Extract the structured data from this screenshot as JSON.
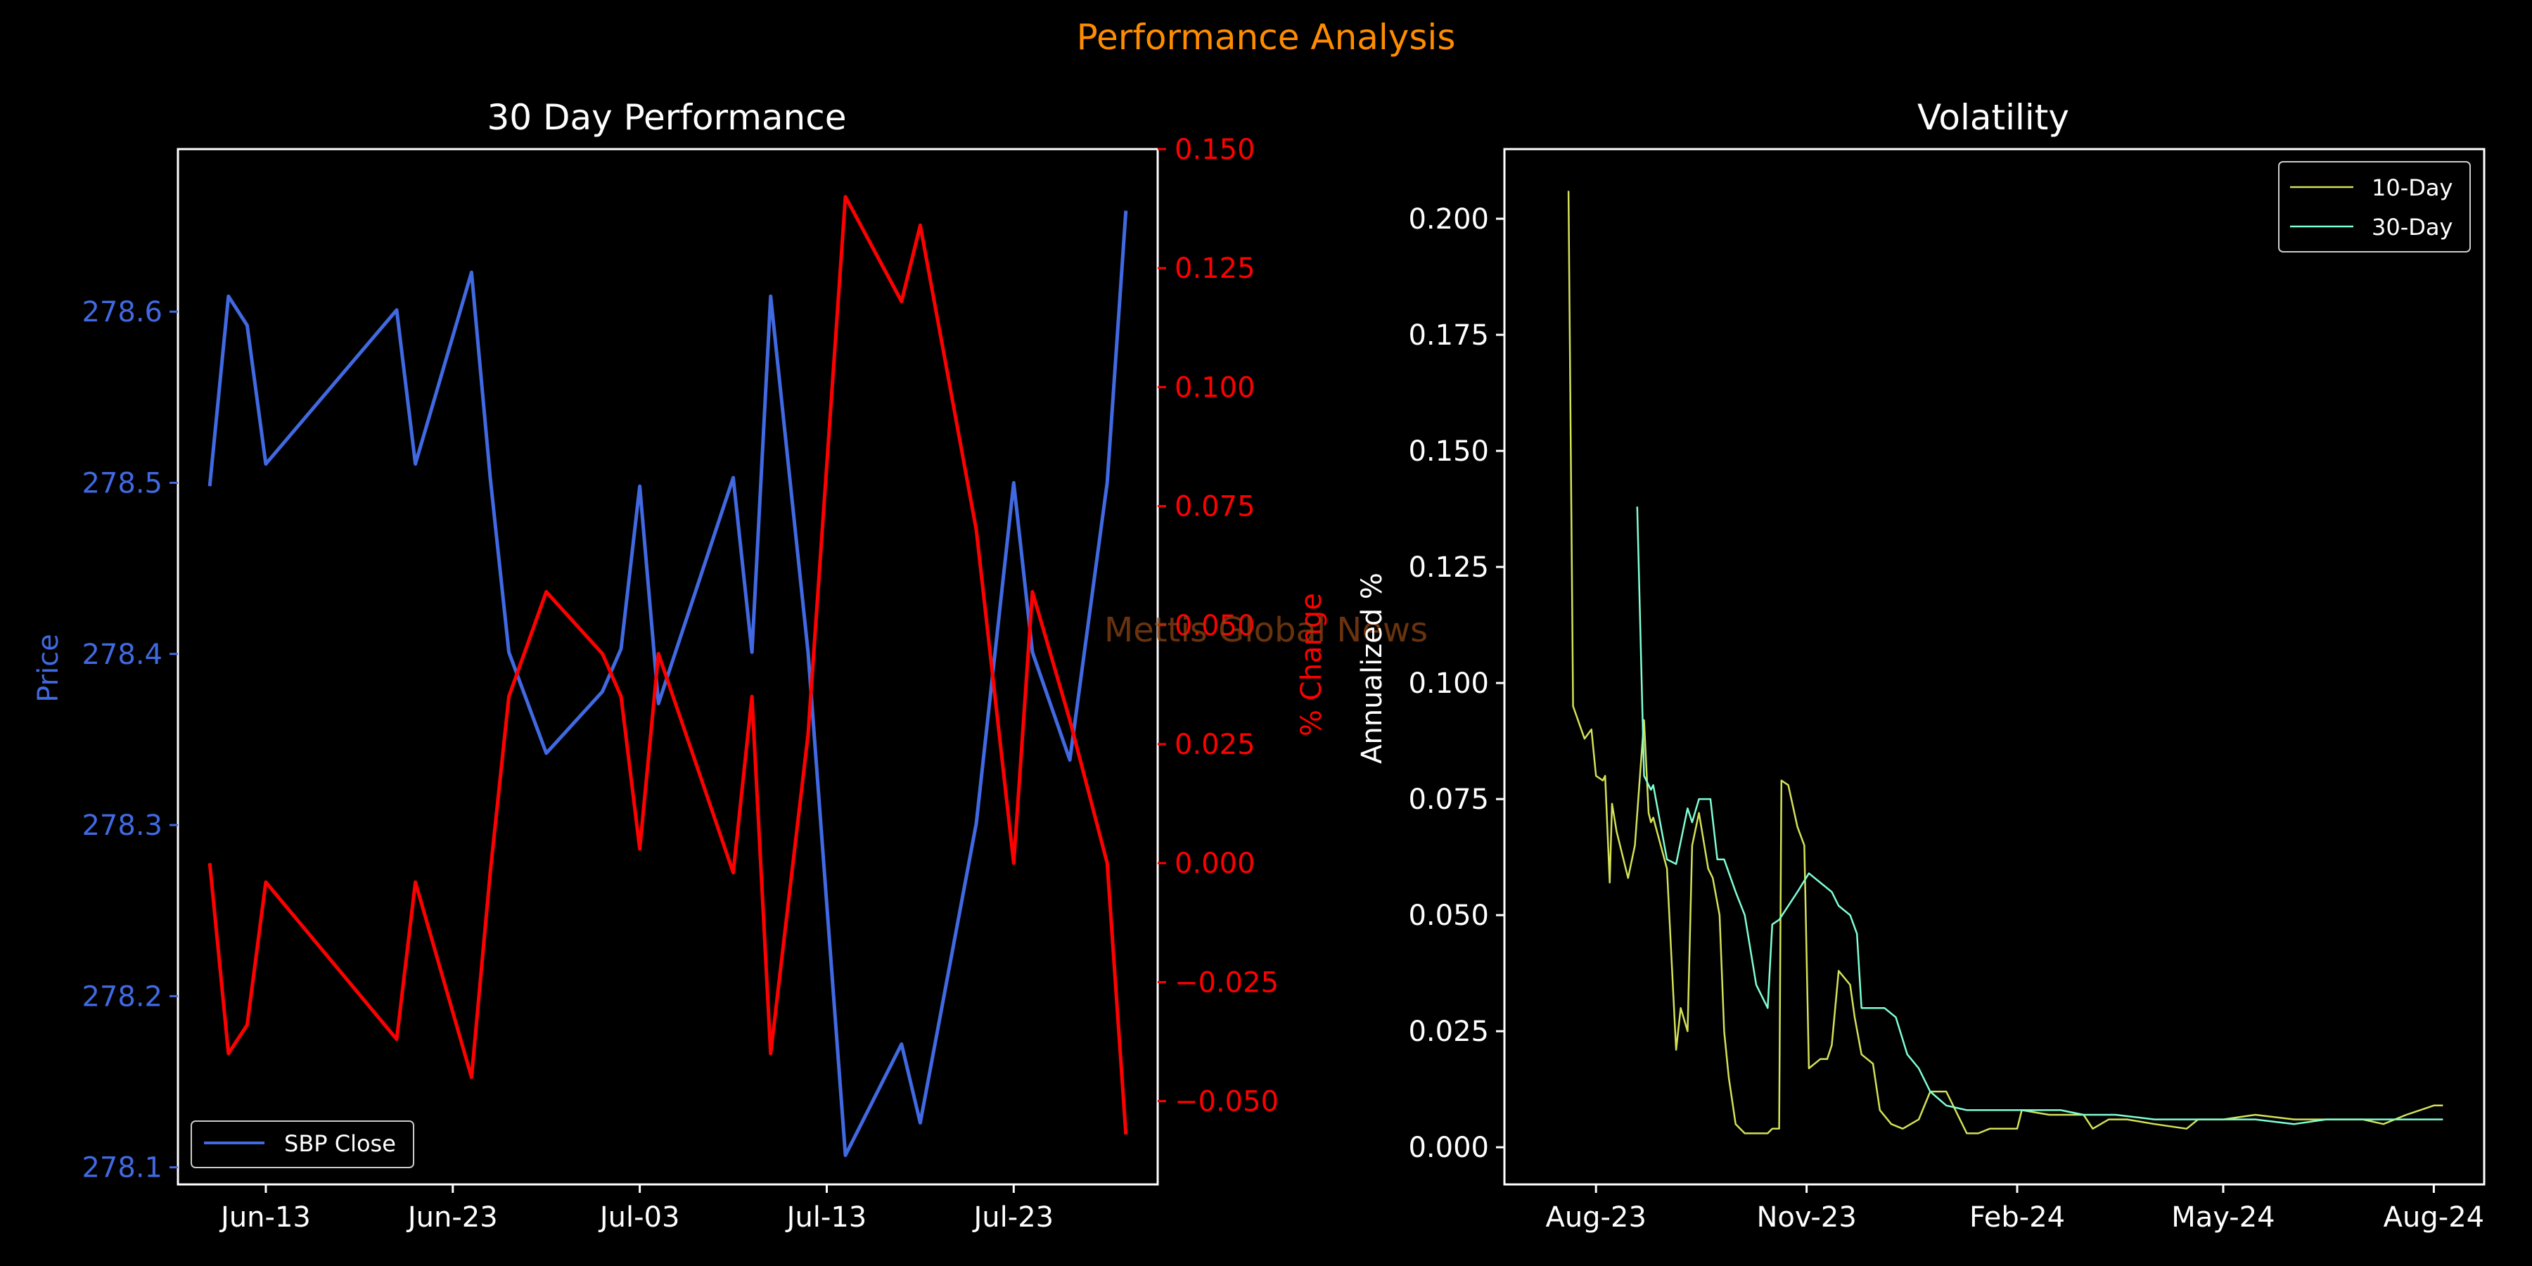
{
  "suptitle": "Performance Analysis",
  "watermark": "Mettis Global News",
  "colors": {
    "background": "#000000",
    "suptitle": "#ff8c00",
    "price": "#4169e1",
    "pct_change": "#ff0000",
    "vol10": "#d4e157",
    "vol30": "#7fffd4",
    "text": "#ffffff"
  },
  "chart_data": [
    {
      "type": "line",
      "title": "30 Day Performance",
      "xlabel": "",
      "x_tick_labels": [
        "Jun-13",
        "Jun-23",
        "Jul-03",
        "Jul-13",
        "Jul-23"
      ],
      "y_left": {
        "label": "Price",
        "ylim": [
          278.09,
          278.695
        ],
        "ticks": [
          "278.1",
          "278.2",
          "278.3",
          "278.4",
          "278.5",
          "278.6"
        ]
      },
      "y_right": {
        "label": "% Change",
        "ylim": [
          -0.0675,
          0.15
        ],
        "ticks": [
          "−0.050",
          "−0.025",
          "0.000",
          "0.025",
          "0.050",
          "0.075",
          "0.100",
          "0.125",
          "0.150"
        ]
      },
      "legend": {
        "position": "lower-left",
        "entries": [
          "SBP Close"
        ]
      },
      "grid": false,
      "series": [
        {
          "name": "SBP Close",
          "axis": "left",
          "x": [
            "2023-06-10",
            "2023-06-11",
            "2023-06-12",
            "2023-06-13",
            "2023-06-20",
            "2023-06-21",
            "2023-06-24",
            "2023-06-25",
            "2023-06-26",
            "2023-06-28",
            "2023-07-01",
            "2023-07-02",
            "2023-07-03",
            "2023-07-04",
            "2023-07-08",
            "2023-07-09",
            "2023-07-10",
            "2023-07-12",
            "2023-07-14",
            "2023-07-17",
            "2023-07-18",
            "2023-07-21",
            "2023-07-23",
            "2023-07-24",
            "2023-07-26",
            "2023-07-28",
            "2023-07-29"
          ],
          "values": [
            278.498,
            278.609,
            278.592,
            278.511,
            278.601,
            278.511,
            278.623,
            278.503,
            278.401,
            278.342,
            278.378,
            278.403,
            278.498,
            278.371,
            278.503,
            278.401,
            278.609,
            278.401,
            278.107,
            278.172,
            278.126,
            278.301,
            278.5,
            278.401,
            278.338,
            278.5,
            278.659
          ]
        },
        {
          "name": "% Change",
          "axis": "right",
          "x": [
            "2023-06-10",
            "2023-06-11",
            "2023-06-12",
            "2023-06-13",
            "2023-06-20",
            "2023-06-21",
            "2023-06-24",
            "2023-06-25",
            "2023-06-26",
            "2023-06-28",
            "2023-07-01",
            "2023-07-02",
            "2023-07-03",
            "2023-07-04",
            "2023-07-08",
            "2023-07-09",
            "2023-07-10",
            "2023-07-12",
            "2023-07-14",
            "2023-07-17",
            "2023-07-18",
            "2023-07-21",
            "2023-07-23",
            "2023-07-24",
            "2023-07-26",
            "2023-07-28",
            "2023-07-29"
          ],
          "values": [
            0.0,
            -0.04,
            -0.034,
            -0.004,
            -0.037,
            -0.004,
            -0.045,
            -0.002,
            0.035,
            0.057,
            0.044,
            0.035,
            0.003,
            0.044,
            -0.002,
            0.035,
            -0.04,
            0.027,
            0.14,
            0.118,
            0.134,
            0.07,
            0.0,
            0.057,
            0.03,
            0.0,
            -0.057
          ]
        }
      ]
    },
    {
      "type": "line",
      "title": "Volatility",
      "xlabel": "",
      "ylabel": "Annualized %",
      "x_tick_labels": [
        "Aug-23",
        "Nov-23",
        "Feb-24",
        "May-24",
        "Aug-24"
      ],
      "ylim": [
        -0.008,
        0.215
      ],
      "y_ticks": [
        "0.000",
        "0.025",
        "0.050",
        "0.075",
        "0.100",
        "0.125",
        "0.150",
        "0.175",
        "0.200"
      ],
      "legend": {
        "position": "upper-right",
        "entries": [
          "10-Day",
          "30-Day"
        ]
      },
      "grid": false,
      "series": [
        {
          "name": "10-Day",
          "x": [
            "2023-07-20",
            "2023-07-22",
            "2023-07-27",
            "2023-07-30",
            "2023-08-01",
            "2023-08-04",
            "2023-08-05",
            "2023-08-07",
            "2023-08-08",
            "2023-08-10",
            "2023-08-15",
            "2023-08-18",
            "2023-08-22",
            "2023-08-24",
            "2023-08-25",
            "2023-08-26",
            "2023-09-01",
            "2023-09-05",
            "2023-09-07",
            "2023-09-10",
            "2023-09-12",
            "2023-09-15",
            "2023-09-19",
            "2023-09-21",
            "2023-09-24",
            "2023-09-26",
            "2023-09-28",
            "2023-10-01",
            "2023-10-05",
            "2023-10-10",
            "2023-10-15",
            "2023-10-17",
            "2023-10-20",
            "2023-10-21",
            "2023-10-24",
            "2023-10-28",
            "2023-10-31",
            "2023-11-02",
            "2023-11-07",
            "2023-11-10",
            "2023-11-12",
            "2023-11-15",
            "2023-11-20",
            "2023-11-22",
            "2023-11-25",
            "2023-11-30",
            "2023-12-03",
            "2023-12-08",
            "2023-12-13",
            "2023-12-20",
            "2023-12-25",
            "2024-01-01",
            "2024-01-10",
            "2024-01-15",
            "2024-01-20",
            "2024-02-01",
            "2024-02-03",
            "2024-02-15",
            "2024-03-01",
            "2024-03-05",
            "2024-03-12",
            "2024-03-20",
            "2024-04-01",
            "2024-04-15",
            "2024-04-20",
            "2024-05-01",
            "2024-05-15",
            "2024-06-01",
            "2024-06-15",
            "2024-07-01",
            "2024-07-10",
            "2024-07-20",
            "2024-08-01",
            "2024-08-05"
          ],
          "values": [
            0.206,
            0.095,
            0.088,
            0.09,
            0.08,
            0.079,
            0.08,
            0.057,
            0.074,
            0.068,
            0.058,
            0.065,
            0.092,
            0.072,
            0.07,
            0.071,
            0.06,
            0.021,
            0.03,
            0.025,
            0.065,
            0.072,
            0.06,
            0.058,
            0.05,
            0.025,
            0.015,
            0.005,
            0.003,
            0.003,
            0.003,
            0.004,
            0.004,
            0.079,
            0.078,
            0.069,
            0.065,
            0.017,
            0.019,
            0.019,
            0.022,
            0.038,
            0.035,
            0.028,
            0.02,
            0.018,
            0.008,
            0.005,
            0.004,
            0.006,
            0.012,
            0.012,
            0.003,
            0.003,
            0.004,
            0.004,
            0.008,
            0.007,
            0.007,
            0.004,
            0.006,
            0.006,
            0.005,
            0.004,
            0.006,
            0.006,
            0.007,
            0.006,
            0.006,
            0.006,
            0.005,
            0.007,
            0.009,
            0.009
          ]
        },
        {
          "name": "30-Day",
          "x": [
            "2023-08-19",
            "2023-08-22",
            "2023-08-25",
            "2023-08-26",
            "2023-09-01",
            "2023-09-05",
            "2023-09-10",
            "2023-09-12",
            "2023-09-15",
            "2023-09-20",
            "2023-09-23",
            "2023-09-26",
            "2023-10-01",
            "2023-10-05",
            "2023-10-10",
            "2023-10-15",
            "2023-10-17",
            "2023-10-20",
            "2023-10-24",
            "2023-10-28",
            "2023-11-02",
            "2023-11-07",
            "2023-11-12",
            "2023-11-15",
            "2023-11-20",
            "2023-11-23",
            "2023-11-25",
            "2023-11-28",
            "2023-12-05",
            "2023-12-10",
            "2023-12-15",
            "2023-12-20",
            "2023-12-25",
            "2024-01-01",
            "2024-01-10",
            "2024-01-20",
            "2024-02-01",
            "2024-02-10",
            "2024-02-20",
            "2024-03-01",
            "2024-03-15",
            "2024-04-01",
            "2024-04-15",
            "2024-05-01",
            "2024-05-15",
            "2024-06-01",
            "2024-06-15",
            "2024-07-01",
            "2024-07-15",
            "2024-08-01",
            "2024-08-05"
          ],
          "values": [
            0.138,
            0.08,
            0.077,
            0.078,
            0.062,
            0.061,
            0.073,
            0.07,
            0.075,
            0.075,
            0.062,
            0.062,
            0.055,
            0.05,
            0.035,
            0.03,
            0.048,
            0.049,
            0.052,
            0.055,
            0.059,
            0.057,
            0.055,
            0.052,
            0.05,
            0.046,
            0.03,
            0.03,
            0.03,
            0.028,
            0.02,
            0.017,
            0.012,
            0.009,
            0.008,
            0.008,
            0.008,
            0.008,
            0.008,
            0.007,
            0.007,
            0.006,
            0.006,
            0.006,
            0.006,
            0.005,
            0.006,
            0.006,
            0.006,
            0.006,
            0.006
          ]
        }
      ]
    }
  ]
}
